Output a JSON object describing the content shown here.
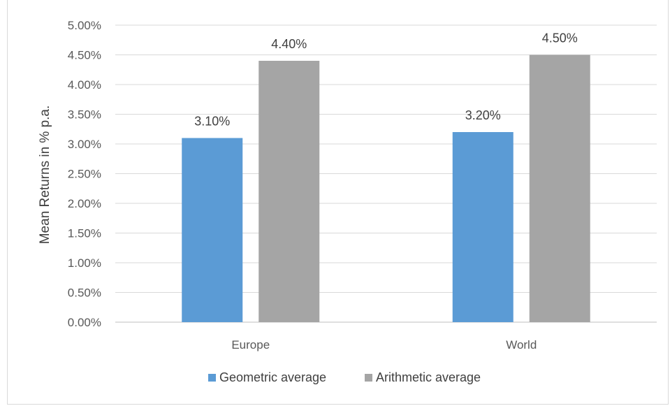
{
  "chart_data": {
    "type": "bar",
    "title": "",
    "xlabel": "",
    "ylabel": "Mean Returns in % p.a.",
    "ylim": [
      0,
      5
    ],
    "ytick_step": 0.5,
    "ytick_labels": [
      "0.00%",
      "0.50%",
      "1.00%",
      "1.50%",
      "2.00%",
      "2.50%",
      "3.00%",
      "3.50%",
      "4.00%",
      "4.50%",
      "5.00%"
    ],
    "grid": true,
    "legend_position": "bottom",
    "categories": [
      "Europe",
      "World"
    ],
    "series": [
      {
        "name": "Geometric average",
        "color": "#5b9bd5",
        "values": [
          3.1,
          3.2
        ],
        "labels": [
          "3.10%",
          "3.20%"
        ]
      },
      {
        "name": "Arithmetic average",
        "color": "#a5a5a5",
        "values": [
          4.4,
          4.5
        ],
        "labels": [
          "4.40%",
          "4.50%"
        ]
      }
    ]
  }
}
